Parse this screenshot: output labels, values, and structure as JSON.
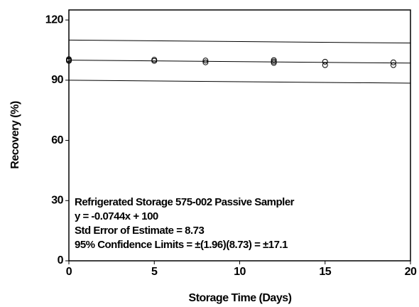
{
  "chart_data": {
    "type": "scatter",
    "xlabel": "Storage Time (Days)",
    "ylabel": "Recovery (%)",
    "xlim": [
      0,
      20
    ],
    "ylim": [
      0,
      125
    ],
    "xticks": [
      0,
      5,
      10,
      15,
      20
    ],
    "yticks": [
      0,
      30,
      60,
      90,
      120
    ],
    "annotations": [
      "Refrigerated Storage 575-002 Passive Sampler",
      "y = -0.0744x + 100",
      "Std Error of Estimate = 8.73",
      "95% Confidence Limits = ±(1.96)(8.73) = ±17.1"
    ],
    "series": [
      {
        "mode": "markers",
        "color": "#000000",
        "x": [
          0,
          0,
          0,
          5,
          5,
          8,
          8,
          12,
          12,
          12,
          15,
          15,
          19,
          19
        ],
        "values": [
          100.5,
          100.0,
          99.6,
          100.2,
          99.6,
          99.8,
          98.9,
          100.0,
          99.3,
          98.6,
          99.2,
          97.5,
          98.9,
          97.5
        ]
      },
      {
        "mode": "line",
        "color": "#000000",
        "x": [
          0,
          20
        ],
        "values": [
          100,
          98.512
        ]
      },
      {
        "mode": "line",
        "color": "#000000",
        "x": [
          0,
          20
        ],
        "values": [
          110,
          108.512
        ]
      },
      {
        "mode": "line",
        "color": "#000000",
        "x": [
          0,
          20
        ],
        "values": [
          90,
          88.512
        ]
      }
    ]
  }
}
